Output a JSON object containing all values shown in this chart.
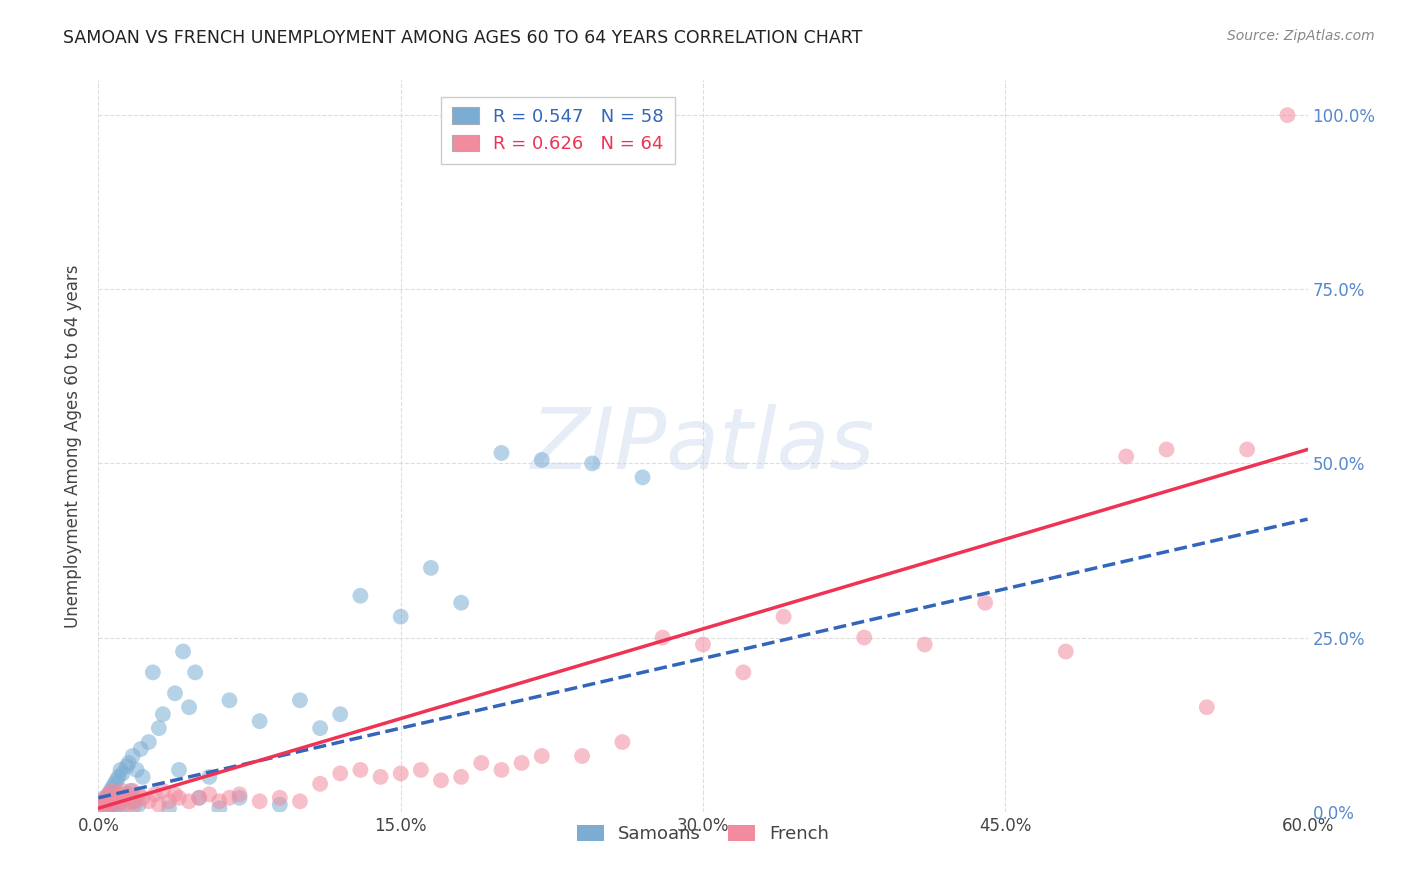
{
  "title": "SAMOAN VS FRENCH UNEMPLOYMENT AMONG AGES 60 TO 64 YEARS CORRELATION CHART",
  "source": "Source: ZipAtlas.com",
  "ylabel": "Unemployment Among Ages 60 to 64 years",
  "xmin": 0.0,
  "xmax": 0.6,
  "ymin": 0.0,
  "ymax": 1.05,
  "x_ticks": [
    0.0,
    0.15,
    0.3,
    0.45,
    0.6
  ],
  "x_tick_labels": [
    "0.0%",
    "15.0%",
    "30.0%",
    "45.0%",
    "60.0%"
  ],
  "y_ticks": [
    0.0,
    0.25,
    0.5,
    0.75,
    1.0
  ],
  "y_tick_labels": [
    "0.0%",
    "25.0%",
    "50.0%",
    "75.0%",
    "100.0%"
  ],
  "samoan_R": "0.547",
  "samoan_N": "58",
  "french_R": "0.626",
  "french_N": "64",
  "samoan_color": "#7BADD4",
  "french_color": "#F28B9E",
  "samoan_line_color": "#3366BB",
  "french_line_color": "#EE3355",
  "background_color": "#FFFFFF",
  "samoan_x": [
    0.001,
    0.002,
    0.003,
    0.004,
    0.005,
    0.005,
    0.006,
    0.006,
    0.007,
    0.007,
    0.008,
    0.008,
    0.009,
    0.009,
    0.01,
    0.01,
    0.011,
    0.011,
    0.012,
    0.013,
    0.014,
    0.015,
    0.015,
    0.016,
    0.017,
    0.018,
    0.019,
    0.02,
    0.021,
    0.022,
    0.025,
    0.027,
    0.03,
    0.032,
    0.035,
    0.038,
    0.04,
    0.042,
    0.045,
    0.048,
    0.05,
    0.055,
    0.06,
    0.065,
    0.07,
    0.08,
    0.09,
    0.1,
    0.11,
    0.12,
    0.13,
    0.15,
    0.165,
    0.18,
    0.2,
    0.22,
    0.245,
    0.27
  ],
  "samoan_y": [
    0.01,
    0.015,
    0.02,
    0.005,
    0.025,
    0.01,
    0.03,
    0.015,
    0.035,
    0.01,
    0.04,
    0.005,
    0.045,
    0.02,
    0.05,
    0.008,
    0.06,
    0.015,
    0.055,
    0.025,
    0.065,
    0.01,
    0.07,
    0.03,
    0.08,
    0.015,
    0.06,
    0.01,
    0.09,
    0.05,
    0.1,
    0.2,
    0.12,
    0.14,
    0.005,
    0.17,
    0.06,
    0.23,
    0.15,
    0.2,
    0.02,
    0.05,
    0.005,
    0.16,
    0.02,
    0.13,
    0.01,
    0.16,
    0.12,
    0.14,
    0.31,
    0.28,
    0.35,
    0.3,
    0.515,
    0.505,
    0.5,
    0.48
  ],
  "french_x": [
    0.001,
    0.002,
    0.003,
    0.004,
    0.005,
    0.005,
    0.006,
    0.007,
    0.008,
    0.009,
    0.01,
    0.011,
    0.012,
    0.013,
    0.014,
    0.015,
    0.016,
    0.017,
    0.018,
    0.02,
    0.022,
    0.025,
    0.028,
    0.03,
    0.032,
    0.035,
    0.038,
    0.04,
    0.045,
    0.05,
    0.055,
    0.06,
    0.065,
    0.07,
    0.08,
    0.09,
    0.1,
    0.11,
    0.12,
    0.13,
    0.14,
    0.15,
    0.16,
    0.17,
    0.18,
    0.19,
    0.2,
    0.21,
    0.22,
    0.24,
    0.26,
    0.28,
    0.3,
    0.32,
    0.34,
    0.38,
    0.41,
    0.44,
    0.48,
    0.51,
    0.53,
    0.55,
    0.57,
    0.59
  ],
  "french_y": [
    0.01,
    0.015,
    0.005,
    0.02,
    0.01,
    0.025,
    0.015,
    0.03,
    0.01,
    0.02,
    0.025,
    0.015,
    0.03,
    0.01,
    0.02,
    0.025,
    0.015,
    0.03,
    0.01,
    0.025,
    0.02,
    0.015,
    0.025,
    0.01,
    0.03,
    0.015,
    0.025,
    0.02,
    0.015,
    0.02,
    0.025,
    0.015,
    0.02,
    0.025,
    0.015,
    0.02,
    0.015,
    0.04,
    0.055,
    0.06,
    0.05,
    0.055,
    0.06,
    0.045,
    0.05,
    0.07,
    0.06,
    0.07,
    0.08,
    0.08,
    0.1,
    0.25,
    0.24,
    0.2,
    0.28,
    0.25,
    0.24,
    0.3,
    0.23,
    0.51,
    0.52,
    0.15,
    0.52,
    1.0
  ],
  "samoan_line_start_x": 0.0,
  "samoan_line_start_y": 0.02,
  "samoan_line_end_x": 0.6,
  "samoan_line_end_y": 0.42,
  "french_line_start_x": 0.0,
  "french_line_start_y": 0.005,
  "french_line_end_x": 0.6,
  "french_line_end_y": 0.52
}
